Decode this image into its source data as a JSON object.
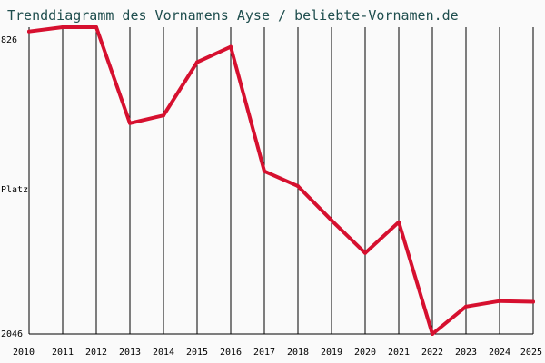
{
  "colors": {
    "line": "#d6102f",
    "grid": "#000000",
    "background": "#fafafa",
    "title": "#1f4e4e"
  },
  "chart_data": {
    "type": "line",
    "title": "Trenddiagramm des Vornamens Ayse / beliebte-Vornamen.de",
    "xlabel": "",
    "ylabel": "Platz",
    "y_inverted": true,
    "ylim": [
      826,
      2046
    ],
    "ytick_labels": [
      "826",
      "2046"
    ],
    "x": [
      2010,
      2011,
      2012,
      2013,
      2014,
      2015,
      2016,
      2017,
      2018,
      2019,
      2020,
      2021,
      2022,
      2023,
      2024,
      2025
    ],
    "xtick_labels": [
      "2010",
      "2011",
      "2012",
      "2013",
      "2014",
      "2015",
      "2016",
      "2017",
      "2018",
      "2019",
      "2020",
      "2021",
      "2022",
      "2023",
      "2024",
      "2025"
    ],
    "grid": "vertical",
    "series": [
      {
        "values": [
          843,
          826,
          826,
          1208,
          1177,
          965,
          904,
          1399,
          1458,
          1594,
          1724,
          1601,
          2046,
          1937,
          1915,
          1918
        ]
      }
    ]
  }
}
